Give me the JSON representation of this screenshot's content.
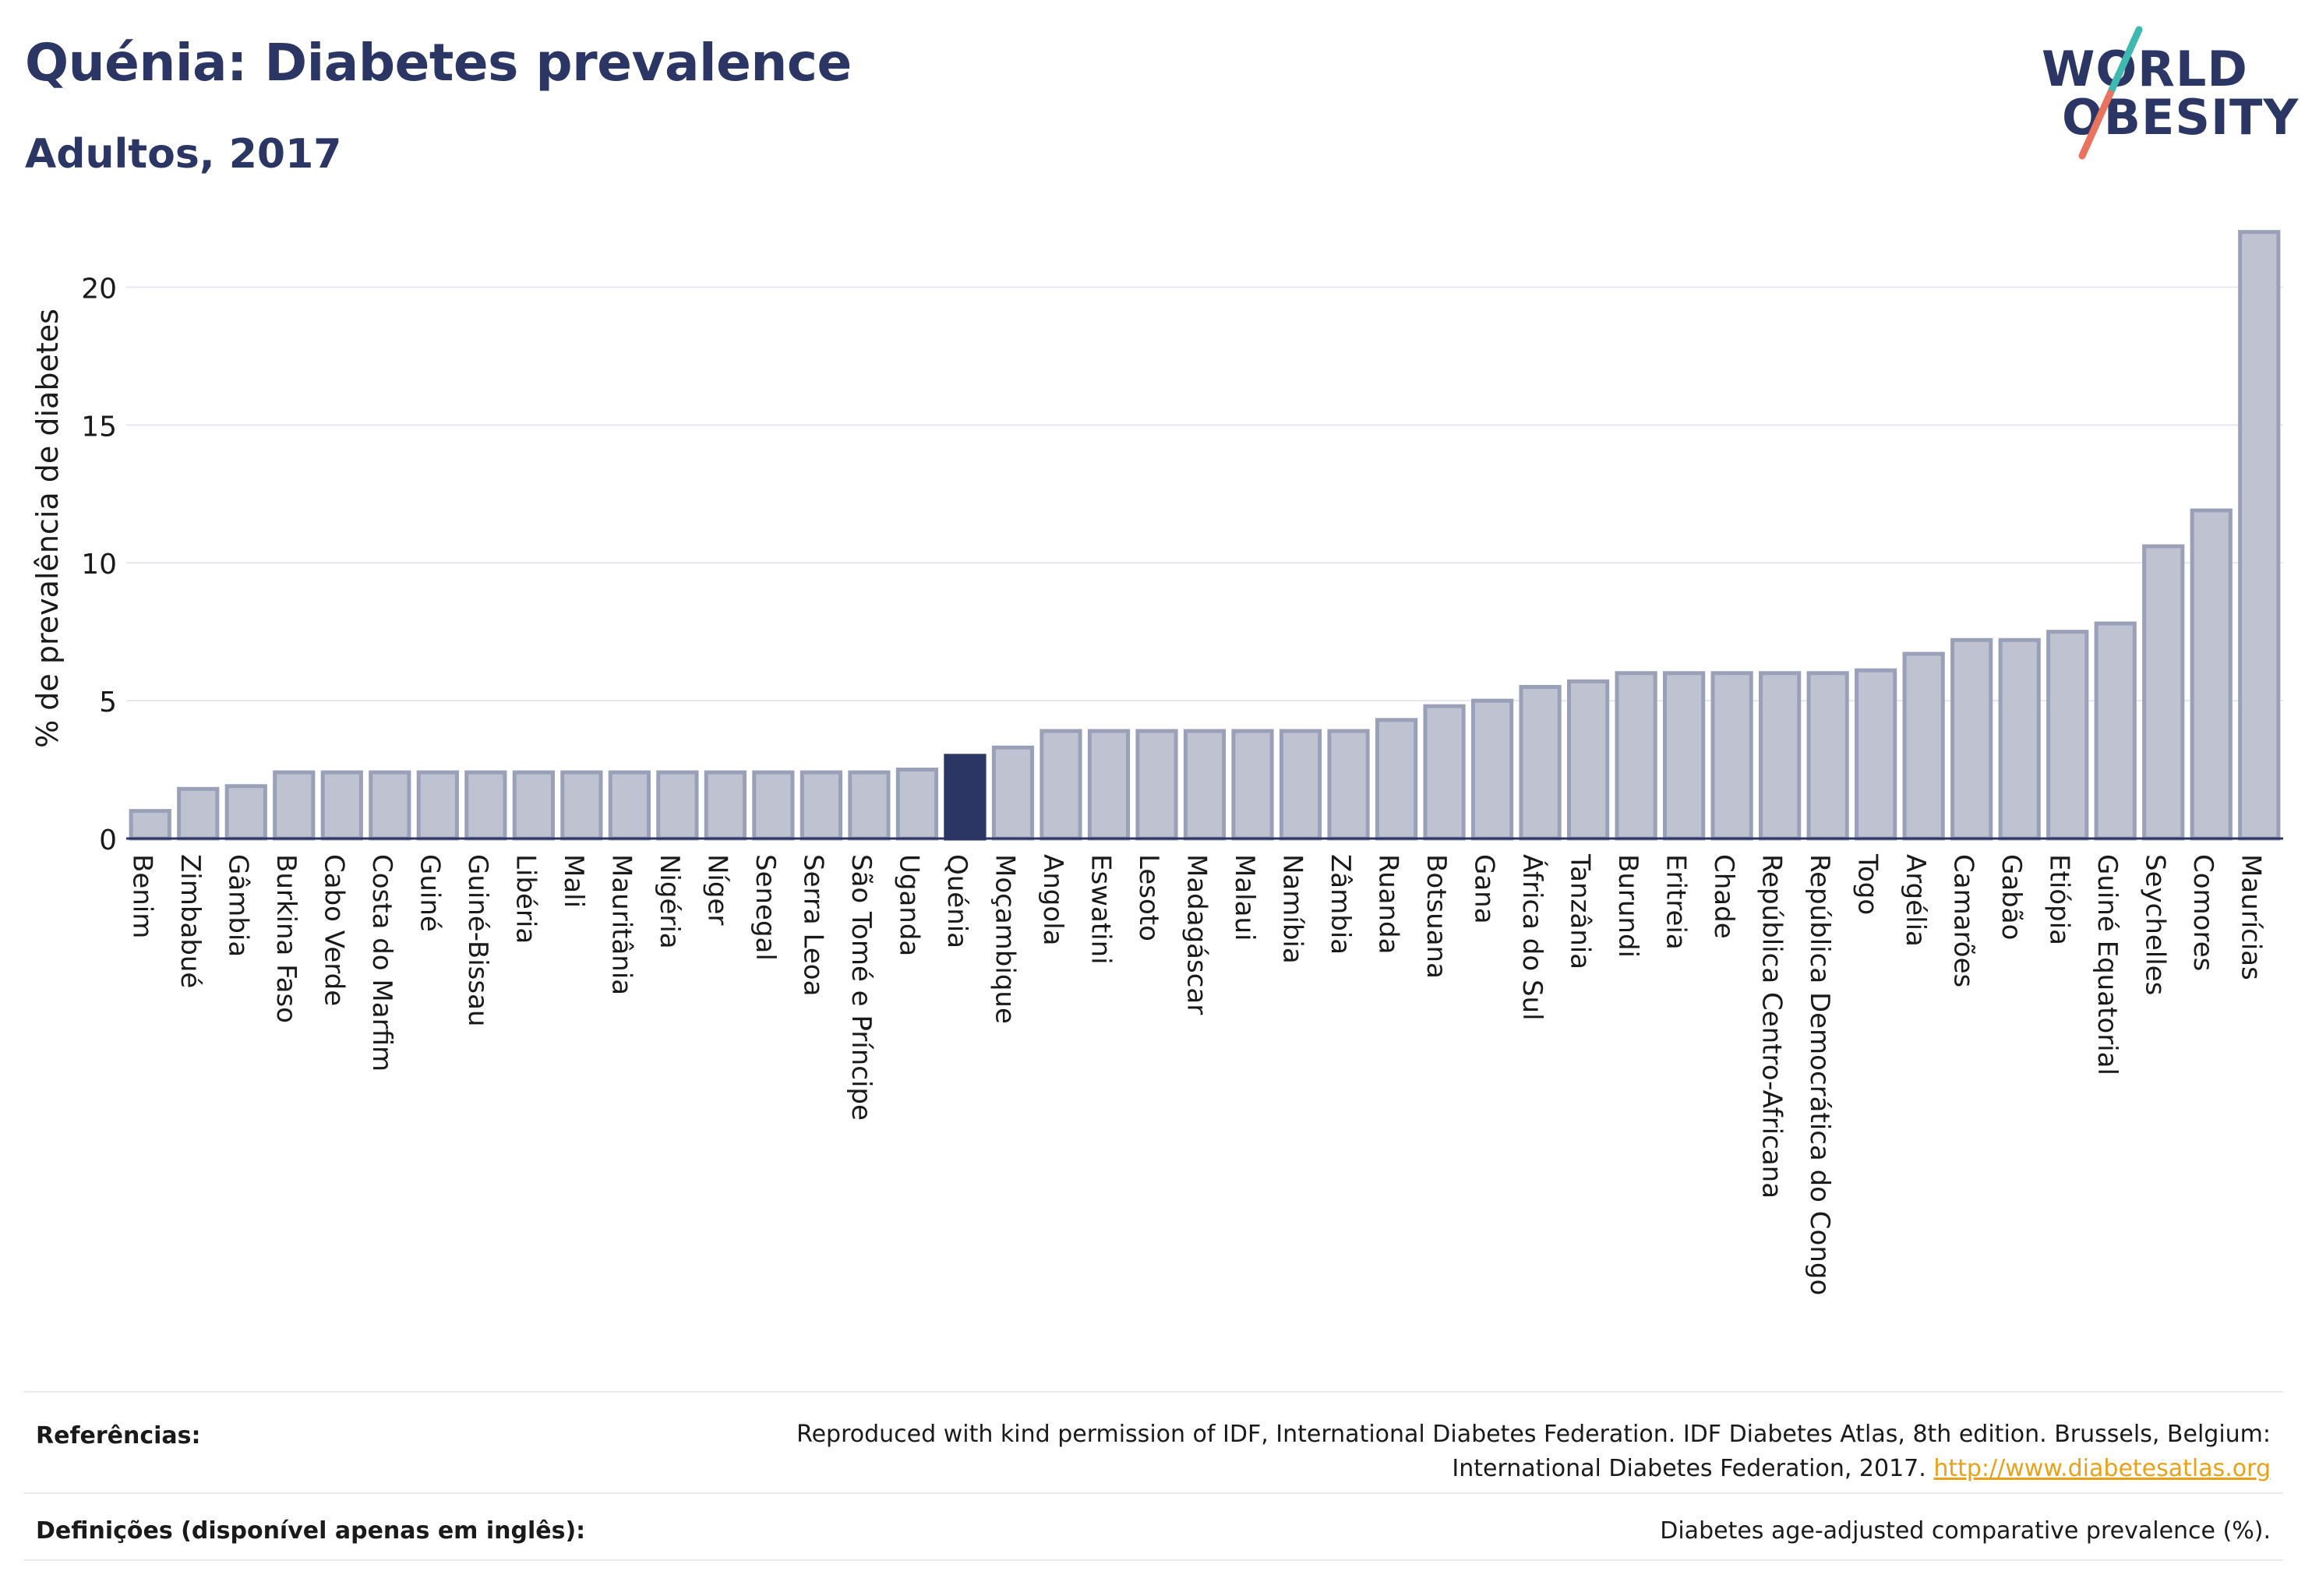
{
  "header": {
    "title": "Quénia: Diabetes prevalence",
    "subtitle": "Adultos, 2017"
  },
  "logo": {
    "line1": "WORLD",
    "line2": "OBESITY"
  },
  "colors": {
    "bar": "#bfc3d1",
    "bar_border": "#9aa0b8",
    "highlight": "#2b3664",
    "text": "#2b3664"
  },
  "chart_data": {
    "type": "bar",
    "ylabel": "% de prevalência de diabetes",
    "ylim": [
      0,
      22.5
    ],
    "yticks": [
      0,
      5,
      10,
      15,
      20
    ],
    "grid": true,
    "highlight": "Quénia",
    "categories": [
      "Benim",
      "Zimbabué",
      "Gâmbia",
      "Burkina Faso",
      "Cabo Verde",
      "Costa do Marfim",
      "Guiné",
      "Guiné-Bissau",
      "Libéria",
      "Mali",
      "Mauritânia",
      "Nigéria",
      "Níger",
      "Senegal",
      "Serra Leoa",
      "São Tomé e Príncipe",
      "Uganda",
      "Quénia",
      "Moçambique",
      "Angola",
      "Eswatini",
      "Lesoto",
      "Madagáscar",
      "Malaui",
      "Namíbia",
      "Zâmbia",
      "Ruanda",
      "Botsuana",
      "Gana",
      "África do Sul",
      "Tanzânia",
      "Burundi",
      "Eritreia",
      "Chade",
      "República Centro-Africana",
      "República Democrática do Congo",
      "Togo",
      "Argélia",
      "Camarões",
      "Gabão",
      "Etiópia",
      "Guiné Equatorial",
      "Seychelles",
      "Comores",
      "Maurícias"
    ],
    "values": [
      1.0,
      1.8,
      1.9,
      2.4,
      2.4,
      2.4,
      2.4,
      2.4,
      2.4,
      2.4,
      2.4,
      2.4,
      2.4,
      2.4,
      2.4,
      2.4,
      2.5,
      3.0,
      3.3,
      3.9,
      3.9,
      3.9,
      3.9,
      3.9,
      3.9,
      3.9,
      4.3,
      4.8,
      5.0,
      5.5,
      5.7,
      6.0,
      6.0,
      6.0,
      6.0,
      6.0,
      6.1,
      6.7,
      7.2,
      7.2,
      7.5,
      7.8,
      10.6,
      11.9,
      22.0
    ]
  },
  "footer": {
    "references_label": "Referências:",
    "references_line1": "Reproduced with kind permission of IDF, International Diabetes Federation. IDF Diabetes Atlas, 8th edition. Brussels, Belgium:",
    "references_line2": "International Diabetes Federation, 2017.",
    "references_link": "http://www.diabetesatlas.org",
    "definitions_label": "Definições (disponível apenas em inglês):",
    "definitions_text": "Diabetes age-adjusted comparative prevalence (%)."
  }
}
